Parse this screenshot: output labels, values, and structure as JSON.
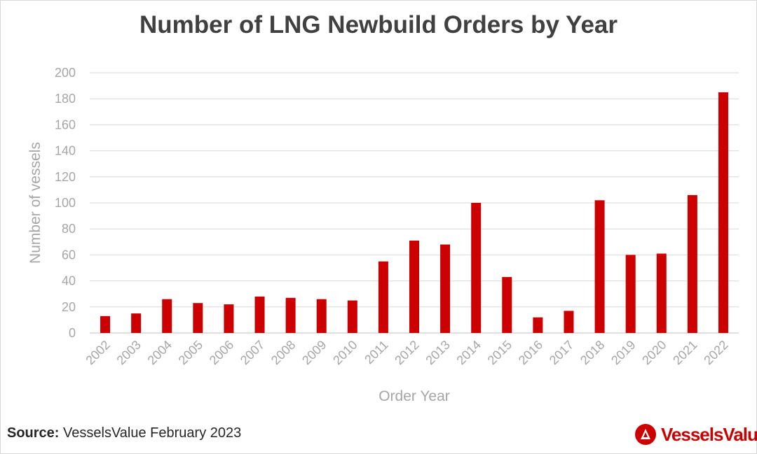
{
  "chart_data": {
    "type": "bar",
    "title": "Number of LNG Newbuild Orders by Year",
    "xlabel": "Order Year",
    "ylabel": "Number of vessels",
    "ylim": [
      0,
      200
    ],
    "yticks": [
      0,
      20,
      40,
      60,
      80,
      100,
      120,
      140,
      160,
      180,
      200
    ],
    "grid": true,
    "categories": [
      "2002",
      "2003",
      "2004",
      "2005",
      "2006",
      "2007",
      "2008",
      "2009",
      "2010",
      "2011",
      "2012",
      "2013",
      "2014",
      "2015",
      "2016",
      "2017",
      "2018",
      "2019",
      "2020",
      "2021",
      "2022"
    ],
    "values": [
      13,
      15,
      26,
      23,
      22,
      28,
      27,
      26,
      25,
      55,
      71,
      68,
      100,
      43,
      12,
      17,
      102,
      60,
      61,
      106,
      185
    ],
    "bar_color": "#cc0000"
  },
  "footer": {
    "source_label": "Source:",
    "source_text": " VesselsValue February 2023"
  },
  "logo": {
    "text": "VesselsValue",
    "color": "#cc0000"
  }
}
